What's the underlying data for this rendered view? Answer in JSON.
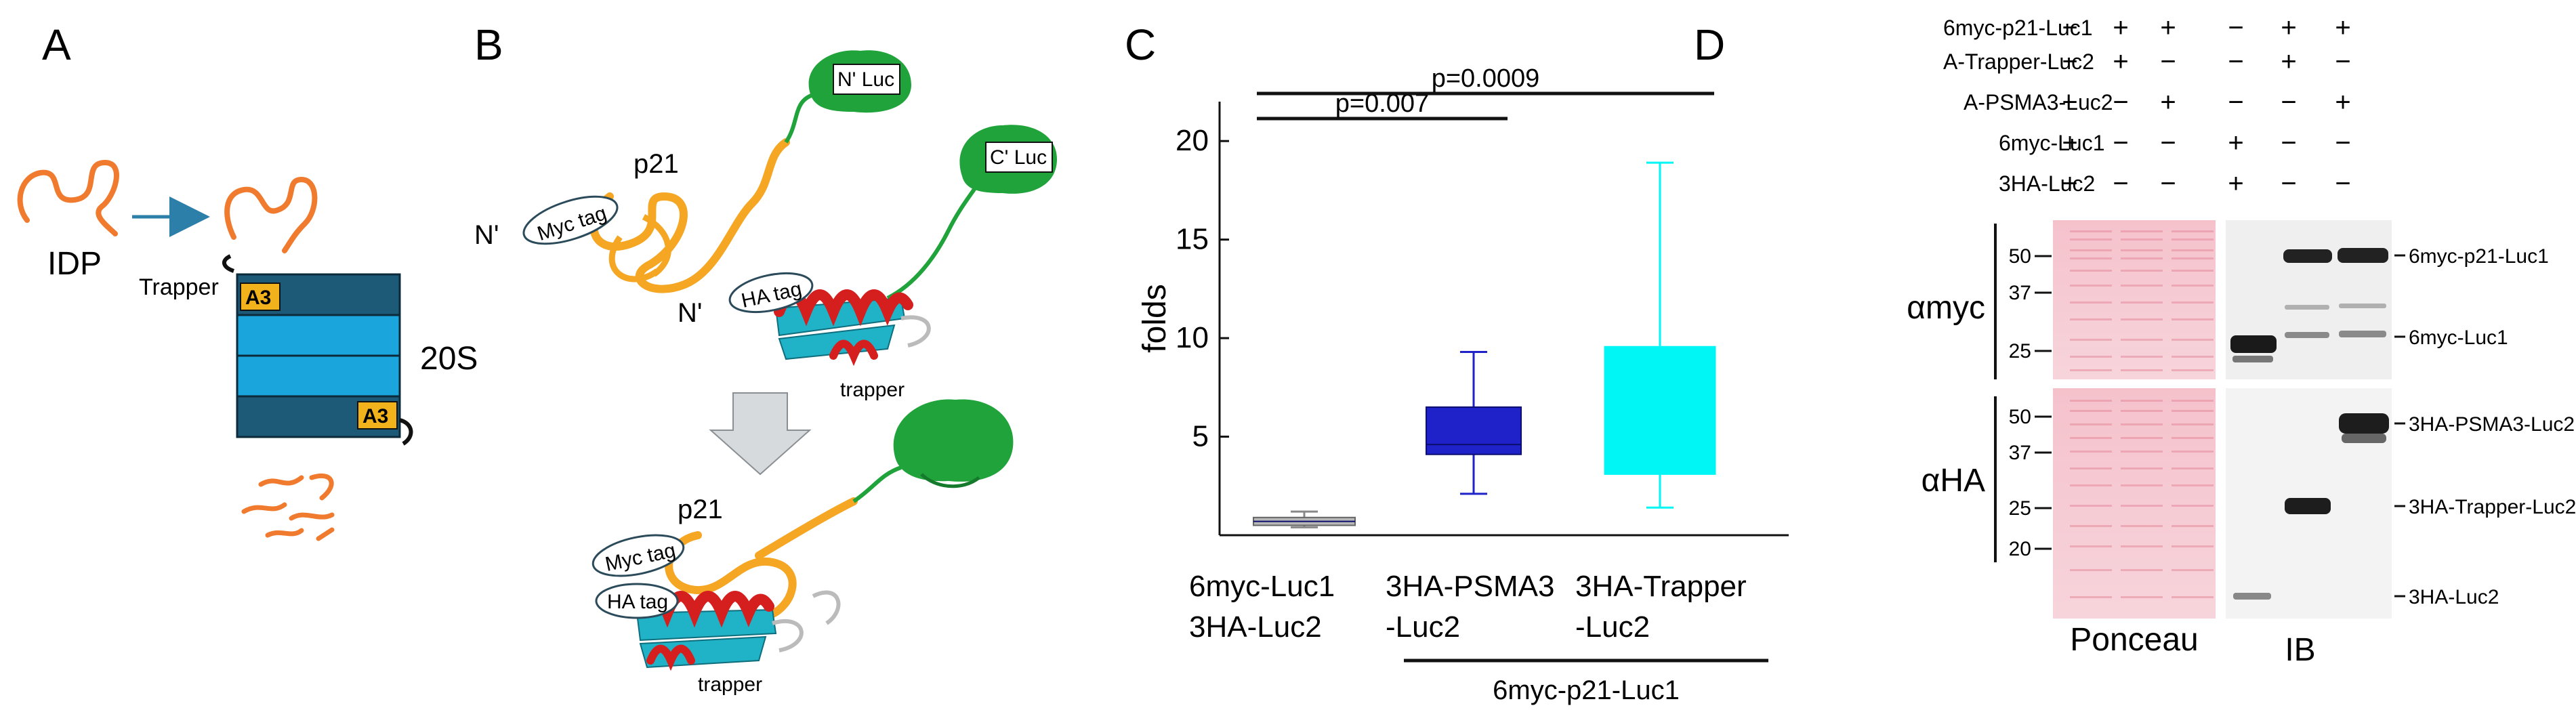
{
  "figure": {
    "panel_letters": [
      "A",
      "B",
      "C",
      "D"
    ]
  },
  "panel_a": {
    "idp_label": "IDP",
    "trapper_label": "Trapper",
    "a3_label_top": "A3",
    "a3_label_bottom": "A3",
    "proteasome_label": "20S",
    "colors": {
      "idp": "#f07a2e",
      "proteasome_dark": "#1d5a78",
      "proteasome_light": "#1aa6dc",
      "a3": "#f2b21b",
      "arrow": "#2c7fa8"
    }
  },
  "panel_b": {
    "labels": {
      "p21_top": "p21",
      "n_luc": "N' Luc",
      "c_luc": "C' Luc",
      "myc_tag_top": "Myc tag",
      "n_prime_left": "N'",
      "n_prime_mid": "N'",
      "ha_tag_top": "HA tag",
      "trapper_top": "trapper",
      "p21_bottom": "p21",
      "myc_tag_bottom": "Myc tag",
      "ha_tag_bottom": "HA tag",
      "trapper_bottom": "trapper"
    },
    "colors": {
      "p21": "#f5a623",
      "luc": "#1fa33a",
      "helix": "#d51f1f",
      "sheet": "#20b2c6",
      "arrow": "#d7dadd"
    }
  },
  "chart_data": {
    "type": "box",
    "ylabel": "folds",
    "ylim": [
      0,
      22
    ],
    "yticks": [
      5,
      10,
      15,
      20
    ],
    "categories": [
      {
        "lines": [
          "6myc-Luc1",
          "3HA-Luc2"
        ]
      },
      {
        "lines": [
          "3HA-PSMA3",
          "-Luc2"
        ]
      },
      {
        "lines": [
          "3HA-Trapper",
          "-Luc2"
        ]
      }
    ],
    "group_label": "6myc-p21-Luc1",
    "boxes": [
      {
        "whisker_low": 0.4,
        "q1": 0.5,
        "median": 0.7,
        "q3": 0.9,
        "whisker_high": 1.2,
        "color": "#b8b8b8"
      },
      {
        "whisker_low": 2.1,
        "q1": 4.1,
        "median": 4.6,
        "q3": 6.5,
        "whisker_high": 9.3,
        "color": "#1e22c8"
      },
      {
        "whisker_low": 1.4,
        "q1": 3.1,
        "median": 3.1,
        "q3": 9.6,
        "whisker_high": 18.9,
        "color": "#00f5f5"
      }
    ],
    "significance": [
      {
        "from": 0,
        "to": 1,
        "label": "p=0.007"
      },
      {
        "from": 0,
        "to": 2,
        "label": "p=0.0009"
      }
    ]
  },
  "panel_d": {
    "conditions": [
      {
        "label": "6myc-p21-Luc1",
        "signs": [
          "−",
          "+",
          "+",
          "−",
          "+",
          "+"
        ]
      },
      {
        "label": "A-Trapper-Luc2",
        "signs": [
          "−",
          "+",
          "−",
          "−",
          "+",
          "−"
        ]
      },
      {
        "label": "A-PSMA3-Luc2",
        "signs": [
          "−",
          "−",
          "+",
          "−",
          "−",
          "+"
        ]
      },
      {
        "label": "6myc-Luc1",
        "signs": [
          "+",
          "−",
          "−",
          "+",
          "−",
          "−"
        ]
      },
      {
        "label": "3HA-Luc2",
        "signs": [
          "+",
          "−",
          "−",
          "+",
          "−",
          "−"
        ]
      }
    ],
    "blot_top": {
      "antibody": "αmyc",
      "markers": [
        "50",
        "37",
        "25"
      ],
      "bands": [
        "6myc-p21-Luc1",
        "6myc-Luc1"
      ]
    },
    "blot_bottom": {
      "antibody": "αHA",
      "markers": [
        "50",
        "37",
        "25",
        "20"
      ],
      "bands": [
        "3HA-PSMA3-Luc2",
        "3HA-Trapper-Luc2",
        "3HA-Luc2"
      ]
    },
    "ponceau_label": "Ponceau",
    "ib_label": "IB",
    "colors": {
      "ponceau": "#f2b7c2",
      "ponceau_band": "#e58a9c",
      "ib_bg": "#efefef",
      "band": "#222222"
    }
  }
}
